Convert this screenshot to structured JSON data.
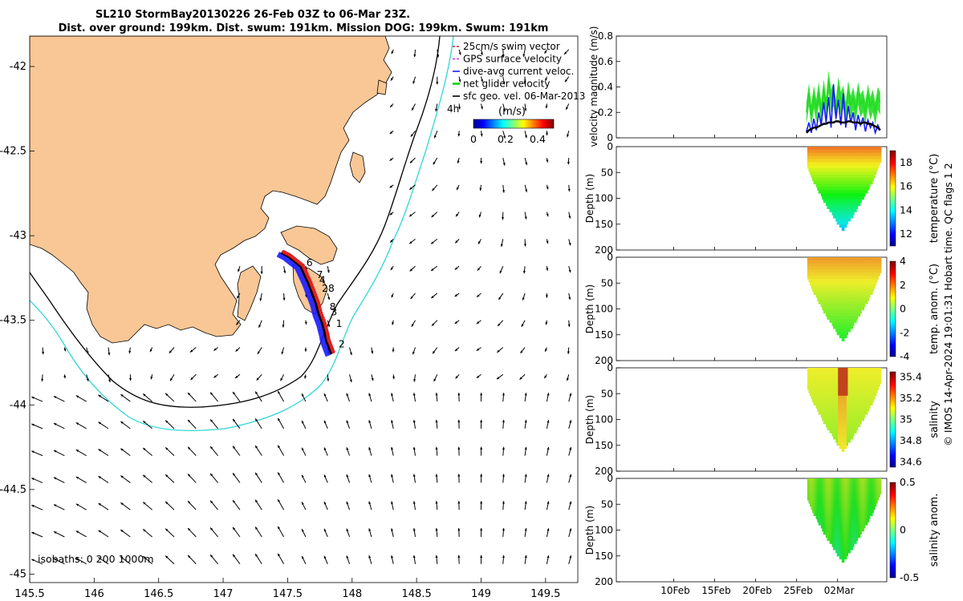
{
  "title": {
    "line1": "SL210 StormBay20130226 26-Feb 03Z to 06-Mar 23Z.",
    "line2": "Dist. over ground: 199km. Dist. swum: 191km. Mission DOG: 199km. Swum: 191km"
  },
  "footer": "© IMOS 14-Apr-2024 19:01:31 Hobart time. QC flags 1  2",
  "map": {
    "xlim": [
      145.5,
      149.75
    ],
    "ylim": [
      -45.05,
      -41.82
    ],
    "xticks": [
      "145.5",
      "146",
      "146.5",
      "147",
      "147.5",
      "148",
      "148.5",
      "149",
      "149.5"
    ],
    "yticks": [
      "-42",
      "-42.5",
      "-43",
      "-43.5",
      "-44",
      "-44.5",
      "-45"
    ],
    "isobath_label": "isobaths: 0   200  1000m",
    "legend": [
      {
        "label": "25cm/s swim vector",
        "color": "#d62020"
      },
      {
        "label": "GPS surface velocity",
        "color": "#cc33cc"
      },
      {
        "label": "dive-avg current veloc.",
        "color": "#1a1aff"
      },
      {
        "label": "net glider velocity",
        "color": "#22dd22"
      },
      {
        "label": "sfc geo. vel. 06-Mar-2013",
        "color": "#000000"
      }
    ],
    "legend_extra": "4h",
    "colorbar": {
      "label": "(m/s)",
      "ticks": [
        "0",
        "0.2",
        "0.4"
      ],
      "range": [
        0,
        0.5
      ]
    },
    "track_day_labels": [
      {
        "text": "6",
        "lon": 147.62,
        "lat": -43.18
      },
      {
        "text": "7",
        "lon": 147.7,
        "lat": -43.25
      },
      {
        "text": "4",
        "lon": 147.72,
        "lat": -43.28
      },
      {
        "text": "28",
        "lon": 147.74,
        "lat": -43.33
      },
      {
        "text": "8",
        "lon": 147.8,
        "lat": -43.44
      },
      {
        "text": "3",
        "lon": 147.81,
        "lat": -43.47
      },
      {
        "text": "1",
        "lon": 147.85,
        "lat": -43.54
      },
      {
        "text": "2",
        "lon": 147.87,
        "lat": -43.66
      }
    ],
    "track": [
      [
        147.45,
        -43.1
      ],
      [
        147.5,
        -43.12
      ],
      [
        147.55,
        -43.15
      ],
      [
        147.6,
        -43.18
      ],
      [
        147.63,
        -43.23
      ],
      [
        147.66,
        -43.28
      ],
      [
        147.69,
        -43.34
      ],
      [
        147.72,
        -43.4
      ],
      [
        147.74,
        -43.46
      ],
      [
        147.77,
        -43.52
      ],
      [
        147.79,
        -43.58
      ],
      [
        147.8,
        -43.62
      ],
      [
        147.82,
        -43.66
      ],
      [
        147.84,
        -43.7
      ]
    ]
  },
  "chart_data": [
    {
      "type": "line",
      "title": "",
      "ylabel": "velocity magnitude (m/s)",
      "ylim": [
        0,
        0.8
      ],
      "yticks": [
        "0",
        "0.2",
        "0.4",
        "0.6",
        "0.8"
      ],
      "x": [
        26.2,
        26.5,
        26.8,
        27.1,
        27.4,
        27.7,
        28.0,
        28.3,
        28.6,
        28.9,
        29.2,
        29.5,
        29.8,
        30.1,
        30.4,
        30.7,
        31.0,
        31.3,
        31.6,
        31.9,
        32.2,
        32.5,
        32.8,
        33.1,
        33.4,
        33.7,
        34.0,
        34.3,
        34.6,
        34.9,
        35.2
      ],
      "xlim": [
        3,
        36
      ],
      "xticks": [
        {
          "label": "10Feb",
          "day": 10
        },
        {
          "label": "15Feb",
          "day": 15
        },
        {
          "label": "20Feb",
          "day": 20
        },
        {
          "label": "25Feb",
          "day": 25
        },
        {
          "label": "02Mar",
          "day": 30
        }
      ],
      "series": [
        {
          "name": "net glider velocity",
          "color": "#22dd22",
          "values": [
            0.2,
            0.35,
            0.18,
            0.33,
            0.22,
            0.36,
            0.2,
            0.38,
            0.24,
            0.45,
            0.3,
            0.35,
            0.22,
            0.4,
            0.28,
            0.33,
            0.2,
            0.37,
            0.25,
            0.32,
            0.22,
            0.36,
            0.26,
            0.3,
            0.2,
            0.34,
            0.24,
            0.3,
            0.2,
            0.32,
            0.28
          ]
        },
        {
          "name": "dive-avg current veloc.",
          "color": "#1a1aff",
          "values": [
            0.05,
            0.12,
            0.04,
            0.15,
            0.06,
            0.2,
            0.1,
            0.28,
            0.12,
            0.32,
            0.08,
            0.42,
            0.15,
            0.3,
            0.1,
            0.35,
            0.08,
            0.25,
            0.12,
            0.2,
            0.06,
            0.18,
            0.1,
            0.16,
            0.05,
            0.14,
            0.08,
            0.12,
            0.04,
            0.1,
            0.06
          ]
        },
        {
          "name": "sfc geo. vel.",
          "color": "#000000",
          "values": [
            0.04,
            0.06,
            0.07,
            0.08,
            0.08,
            0.09,
            0.1,
            0.11,
            0.11,
            0.12,
            0.12,
            0.12,
            0.13,
            0.13,
            0.12,
            0.12,
            0.12,
            0.13,
            0.13,
            0.12,
            0.12,
            0.12,
            0.11,
            0.12,
            0.12,
            0.11,
            0.11,
            0.1,
            0.09,
            0.08,
            0.06
          ]
        }
      ]
    },
    {
      "type": "heatmap",
      "title": "",
      "ylabel": "Depth (m)",
      "clabel": "temperature (°C)",
      "ylim": [
        200,
        0
      ],
      "yticks": [
        "0",
        "50",
        "100",
        "150",
        "200"
      ],
      "cticks": [
        "12",
        "14",
        "16",
        "18"
      ],
      "crange": [
        11,
        19
      ],
      "cmin_pos": 0.0
    },
    {
      "type": "heatmap",
      "title": "",
      "ylabel": "Depth (m)",
      "clabel": "temp. anom. (°C)",
      "ylim": [
        200,
        0
      ],
      "yticks": [
        "0",
        "50",
        "100",
        "150",
        "200"
      ],
      "cticks": [
        "-4",
        "-2",
        "0",
        "2",
        "4"
      ],
      "crange": [
        -4,
        4
      ]
    },
    {
      "type": "heatmap",
      "title": "",
      "ylabel": "Depth (m)",
      "clabel": "salinity",
      "ylim": [
        200,
        0
      ],
      "yticks": [
        "0",
        "50",
        "100",
        "150",
        "200"
      ],
      "cticks": [
        "34.6",
        "34.8",
        "35",
        "35.2",
        "35.4"
      ],
      "crange": [
        34.55,
        35.45
      ]
    },
    {
      "type": "heatmap",
      "title": "",
      "ylabel": "Depth (m)",
      "clabel": "salinity anom.",
      "ylim": [
        200,
        0
      ],
      "yticks": [
        "0",
        "50",
        "100",
        "150",
        "200"
      ],
      "cticks": [
        "-0.5",
        "0",
        "0.5"
      ],
      "crange": [
        -0.5,
        0.5
      ],
      "xticks": [
        "10Feb",
        "15Feb",
        "20Feb",
        "25Feb",
        "02Mar"
      ]
    }
  ]
}
